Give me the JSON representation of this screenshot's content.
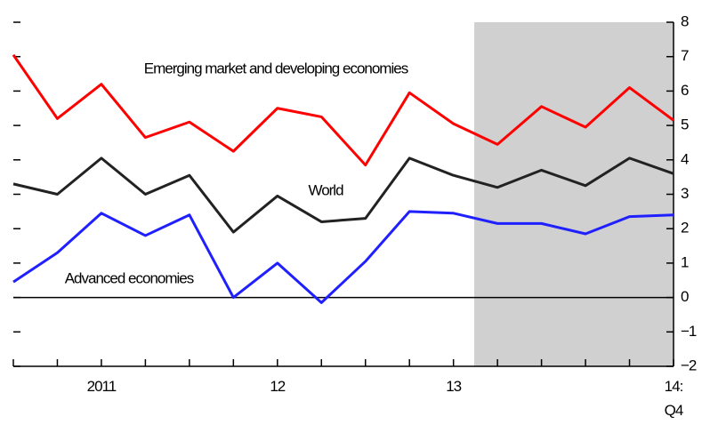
{
  "chart_data": {
    "type": "line",
    "categories": [
      null,
      null,
      "2011",
      null,
      null,
      null,
      "12",
      null,
      null,
      null,
      "13",
      null,
      null,
      null,
      null,
      "14:\nQ4"
    ],
    "series": [
      {
        "name": "Emerging market and developing economies",
        "color": "#ff0000",
        "values": [
          7.05,
          5.2,
          6.2,
          4.65,
          5.1,
          4.25,
          5.5,
          5.25,
          3.85,
          5.95,
          5.05,
          4.45,
          5.55,
          4.95,
          6.1,
          5.15
        ]
      },
      {
        "name": "World",
        "color": "#222222",
        "values": [
          3.3,
          3.0,
          4.05,
          3.0,
          3.55,
          1.9,
          2.95,
          2.2,
          2.3,
          4.05,
          3.55,
          3.2,
          3.7,
          3.25,
          4.05,
          3.6
        ]
      },
      {
        "name": "Advanced economies",
        "color": "#2020ff",
        "values": [
          0.45,
          1.3,
          2.45,
          1.8,
          2.4,
          0,
          1.0,
          -0.15,
          1.05,
          2.5,
          2.45,
          2.15,
          2.15,
          1.85,
          2.35,
          2.4
        ]
      }
    ],
    "ylim": [
      -2,
      8
    ],
    "yticks": [
      {
        "value": -2,
        "label": "−2"
      },
      {
        "value": -1,
        "label": "−1"
      },
      0,
      1,
      2,
      3,
      4,
      5,
      6,
      7,
      8
    ]
  }
}
